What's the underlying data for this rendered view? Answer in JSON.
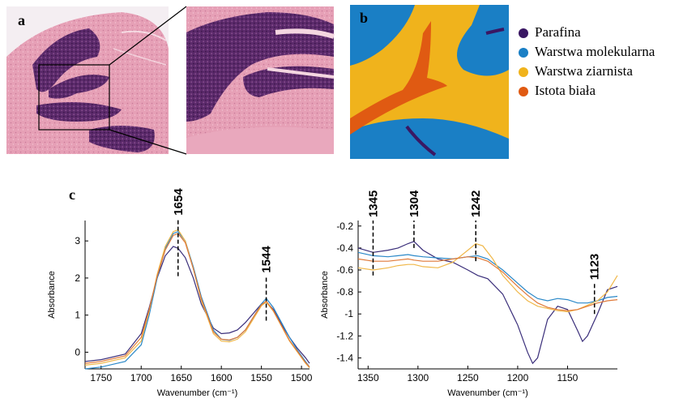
{
  "panels": {
    "a": "a",
    "b": "b",
    "c": "c"
  },
  "colors": {
    "tissue_pink": "#e8a3b8",
    "tissue_dark": "#5b2a6b",
    "parafina": "#3a1763",
    "molekularna": "#1a7fc5",
    "ziarnista": "#f0b31c",
    "istota": "#e05a12"
  },
  "legend": [
    {
      "label": "Parafina",
      "color": "#3a1763"
    },
    {
      "label": "Warstwa molekularna",
      "color": "#1a7fc5"
    },
    {
      "label": "Warstwa ziarnista",
      "color": "#f0b31c"
    },
    {
      "label": "Istota biała",
      "color": "#e05a12"
    }
  ],
  "chart_data": [
    {
      "type": "line",
      "title": "",
      "xlabel": "Wavenumber (cm⁻¹)",
      "ylabel": "Absorbance",
      "xlim": [
        1770,
        1490
      ],
      "ylim": [
        -0.45,
        3.55
      ],
      "xticks": [
        1750,
        1700,
        1650,
        1600,
        1550,
        1500
      ],
      "xtick_labels": [
        "1750",
        "1700",
        "1650",
        "1600",
        "1550",
        "1500"
      ],
      "yticks": [
        0,
        1,
        2,
        3
      ],
      "ytick_labels": [
        "0",
        "1",
        "2",
        "3"
      ],
      "annotations": [
        {
          "x": 1654,
          "label": "1654",
          "y_from": 2.05,
          "y_to": 3.6
        },
        {
          "x": 1544,
          "label": "1544",
          "y_from": 0.85,
          "y_to": 2.05
        }
      ],
      "series": [
        {
          "name": "Parafina",
          "color": "#3a2e7a",
          "x": [
            1770,
            1750,
            1720,
            1700,
            1690,
            1680,
            1670,
            1660,
            1654,
            1645,
            1635,
            1625,
            1610,
            1600,
            1590,
            1580,
            1570,
            1560,
            1550,
            1544,
            1535,
            1525,
            1515,
            1505,
            1495,
            1490
          ],
          "y": [
            -0.25,
            -0.2,
            -0.05,
            0.5,
            1.2,
            2.0,
            2.6,
            2.85,
            2.8,
            2.55,
            2.0,
            1.3,
            0.65,
            0.5,
            0.52,
            0.6,
            0.8,
            1.05,
            1.3,
            1.35,
            1.15,
            0.75,
            0.4,
            0.1,
            -0.15,
            -0.3
          ]
        },
        {
          "name": "Warstwa molekularna",
          "color": "#2a88c8",
          "x": [
            1770,
            1750,
            1720,
            1700,
            1690,
            1680,
            1670,
            1660,
            1654,
            1645,
            1635,
            1625,
            1610,
            1600,
            1590,
            1580,
            1570,
            1560,
            1550,
            1544,
            1535,
            1525,
            1515,
            1505,
            1495,
            1490
          ],
          "y": [
            -0.45,
            -0.4,
            -0.25,
            0.2,
            1.0,
            2.0,
            2.8,
            3.2,
            3.25,
            3.0,
            2.3,
            1.5,
            0.6,
            0.35,
            0.32,
            0.4,
            0.6,
            0.95,
            1.3,
            1.45,
            1.2,
            0.8,
            0.4,
            0.05,
            -0.25,
            -0.4
          ]
        },
        {
          "name": "Warstwa ziarnista",
          "color": "#f0b84a",
          "x": [
            1770,
            1750,
            1720,
            1700,
            1690,
            1680,
            1670,
            1660,
            1654,
            1645,
            1635,
            1625,
            1610,
            1600,
            1590,
            1580,
            1570,
            1560,
            1550,
            1544,
            1535,
            1525,
            1515,
            1505,
            1495,
            1490
          ],
          "y": [
            -0.35,
            -0.3,
            -0.15,
            0.3,
            1.1,
            2.1,
            2.85,
            3.25,
            3.3,
            3.0,
            2.25,
            1.4,
            0.5,
            0.3,
            0.28,
            0.35,
            0.55,
            0.9,
            1.25,
            1.35,
            1.1,
            0.7,
            0.3,
            0.0,
            -0.3,
            -0.42
          ]
        },
        {
          "name": "Istota biała",
          "color": "#e07a3a",
          "x": [
            1770,
            1750,
            1720,
            1700,
            1690,
            1680,
            1670,
            1660,
            1654,
            1645,
            1635,
            1625,
            1610,
            1600,
            1590,
            1580,
            1570,
            1560,
            1550,
            1544,
            1535,
            1525,
            1515,
            1505,
            1495,
            1490
          ],
          "y": [
            -0.3,
            -0.25,
            -0.1,
            0.4,
            1.15,
            2.05,
            2.75,
            3.15,
            3.2,
            2.95,
            2.25,
            1.45,
            0.55,
            0.35,
            0.33,
            0.4,
            0.6,
            0.95,
            1.28,
            1.38,
            1.12,
            0.72,
            0.32,
            0.02,
            -0.28,
            -0.4
          ]
        }
      ]
    },
    {
      "type": "line",
      "title": "",
      "xlabel": "Wavenumber (cm⁻¹)",
      "ylabel": "Absorbance",
      "xlim": [
        1360,
        1100
      ],
      "ylim": [
        -1.5,
        -0.15
      ],
      "xticks": [
        1350,
        1300,
        1250,
        1200,
        1150
      ],
      "xtick_labels": [
        "1350",
        "1300",
        "1250",
        "1200",
        "1150"
      ],
      "yticks": [
        -0.2,
        -0.4,
        -0.6,
        -0.8,
        -1,
        -1.2,
        -1.4
      ],
      "ytick_labels": [
        "-0.2",
        "-0.4",
        "-0.6",
        "-0.8",
        "-1",
        "-1.2",
        "-1.4"
      ],
      "annotations": [
        {
          "x": 1345,
          "label": "1345",
          "y_from": -0.65,
          "y_to": -0.15
        },
        {
          "x": 1304,
          "label": "1304",
          "y_from": -0.4,
          "y_to": -0.15
        },
        {
          "x": 1242,
          "label": "1242",
          "y_from": -0.52,
          "y_to": -0.15
        },
        {
          "x": 1123,
          "label": "1123",
          "y_from": -1.0,
          "y_to": -0.72
        }
      ],
      "series": [
        {
          "name": "Parafina",
          "color": "#3a2e7a",
          "x": [
            1360,
            1345,
            1330,
            1320,
            1310,
            1304,
            1295,
            1280,
            1265,
            1250,
            1240,
            1230,
            1215,
            1200,
            1190,
            1185,
            1180,
            1170,
            1160,
            1150,
            1140,
            1135,
            1130,
            1120,
            1110,
            1100
          ],
          "y": [
            -0.4,
            -0.44,
            -0.42,
            -0.4,
            -0.36,
            -0.34,
            -0.42,
            -0.5,
            -0.53,
            -0.6,
            -0.65,
            -0.68,
            -0.82,
            -1.1,
            -1.35,
            -1.45,
            -1.4,
            -1.05,
            -0.93,
            -0.96,
            -1.15,
            -1.25,
            -1.2,
            -1.0,
            -0.78,
            -0.75
          ]
        },
        {
          "name": "Warstwa molekularna",
          "color": "#2a88c8",
          "x": [
            1360,
            1345,
            1330,
            1320,
            1310,
            1304,
            1295,
            1280,
            1265,
            1250,
            1240,
            1230,
            1215,
            1200,
            1190,
            1180,
            1170,
            1160,
            1150,
            1140,
            1130,
            1120,
            1110,
            1100
          ],
          "y": [
            -0.44,
            -0.47,
            -0.48,
            -0.47,
            -0.46,
            -0.47,
            -0.48,
            -0.49,
            -0.5,
            -0.48,
            -0.47,
            -0.5,
            -0.6,
            -0.72,
            -0.8,
            -0.86,
            -0.88,
            -0.86,
            -0.87,
            -0.9,
            -0.9,
            -0.88,
            -0.85,
            -0.84
          ]
        },
        {
          "name": "Warstwa ziarnista",
          "color": "#f0b84a",
          "x": [
            1360,
            1345,
            1330,
            1320,
            1310,
            1304,
            1295,
            1280,
            1265,
            1250,
            1242,
            1235,
            1225,
            1215,
            1200,
            1190,
            1180,
            1170,
            1160,
            1150,
            1140,
            1130,
            1120,
            1110,
            1100
          ],
          "y": [
            -0.58,
            -0.6,
            -0.58,
            -0.56,
            -0.55,
            -0.55,
            -0.57,
            -0.58,
            -0.53,
            -0.42,
            -0.36,
            -0.38,
            -0.5,
            -0.65,
            -0.8,
            -0.88,
            -0.93,
            -0.95,
            -0.97,
            -0.98,
            -0.96,
            -0.92,
            -0.88,
            -0.8,
            -0.65
          ]
        },
        {
          "name": "Istota biała",
          "color": "#e07a3a",
          "x": [
            1360,
            1345,
            1330,
            1320,
            1310,
            1304,
            1295,
            1280,
            1265,
            1250,
            1240,
            1230,
            1215,
            1200,
            1190,
            1180,
            1170,
            1160,
            1150,
            1140,
            1130,
            1120,
            1110,
            1100
          ],
          "y": [
            -0.5,
            -0.52,
            -0.52,
            -0.51,
            -0.5,
            -0.51,
            -0.52,
            -0.52,
            -0.5,
            -0.48,
            -0.49,
            -0.52,
            -0.62,
            -0.75,
            -0.83,
            -0.9,
            -0.94,
            -0.96,
            -0.97,
            -0.96,
            -0.93,
            -0.9,
            -0.88,
            -0.87
          ]
        }
      ]
    }
  ]
}
